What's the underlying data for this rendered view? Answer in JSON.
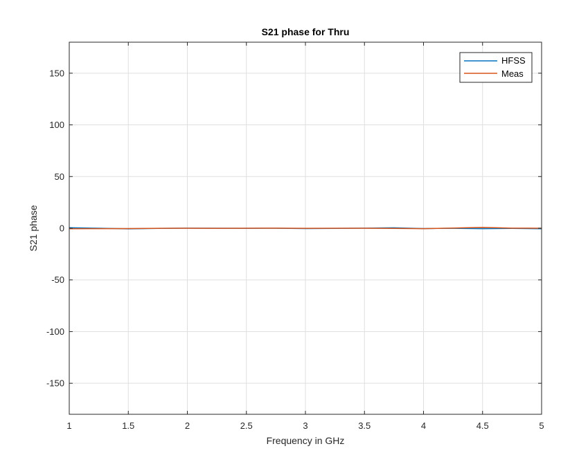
{
  "chart_data": {
    "type": "line",
    "title": "S21 phase for Thru",
    "xlabel": "Frequency in GHz",
    "ylabel": "S21 phase",
    "xlim": [
      1,
      5
    ],
    "ylim": [
      -180,
      180
    ],
    "xticks": [
      1,
      1.5,
      2,
      2.5,
      3,
      3.5,
      4,
      4.5,
      5
    ],
    "xtick_labels": [
      "1",
      "1.5",
      "2",
      "2.5",
      "3",
      "3.5",
      "4",
      "4.5",
      "5"
    ],
    "yticks": [
      -150,
      -100,
      -50,
      0,
      50,
      100,
      150
    ],
    "ytick_labels": [
      "-150",
      "-100",
      "-50",
      "0",
      "50",
      "100",
      "150"
    ],
    "grid": true,
    "legend_position": "top-right",
    "x": [
      1,
      1.25,
      1.5,
      1.75,
      2,
      2.25,
      2.5,
      2.75,
      3,
      3.25,
      3.5,
      3.75,
      4,
      4.25,
      4.5,
      4.75,
      5
    ],
    "series": [
      {
        "name": "HFSS",
        "color": "#0072BD",
        "values": [
          0.5,
          0.0,
          -0.6,
          -0.2,
          0.1,
          0.0,
          -0.1,
          0.0,
          -0.3,
          -0.2,
          0.1,
          0.4,
          -0.3,
          -0.1,
          -0.4,
          -0.2,
          -0.5
        ]
      },
      {
        "name": "Meas",
        "color": "#D95319",
        "values": [
          -0.5,
          -0.4,
          -0.3,
          -0.1,
          0.0,
          -0.1,
          0.0,
          0.1,
          -0.1,
          0.0,
          0.0,
          -0.2,
          -0.4,
          0.2,
          0.8,
          0.1,
          0.0
        ]
      }
    ]
  }
}
